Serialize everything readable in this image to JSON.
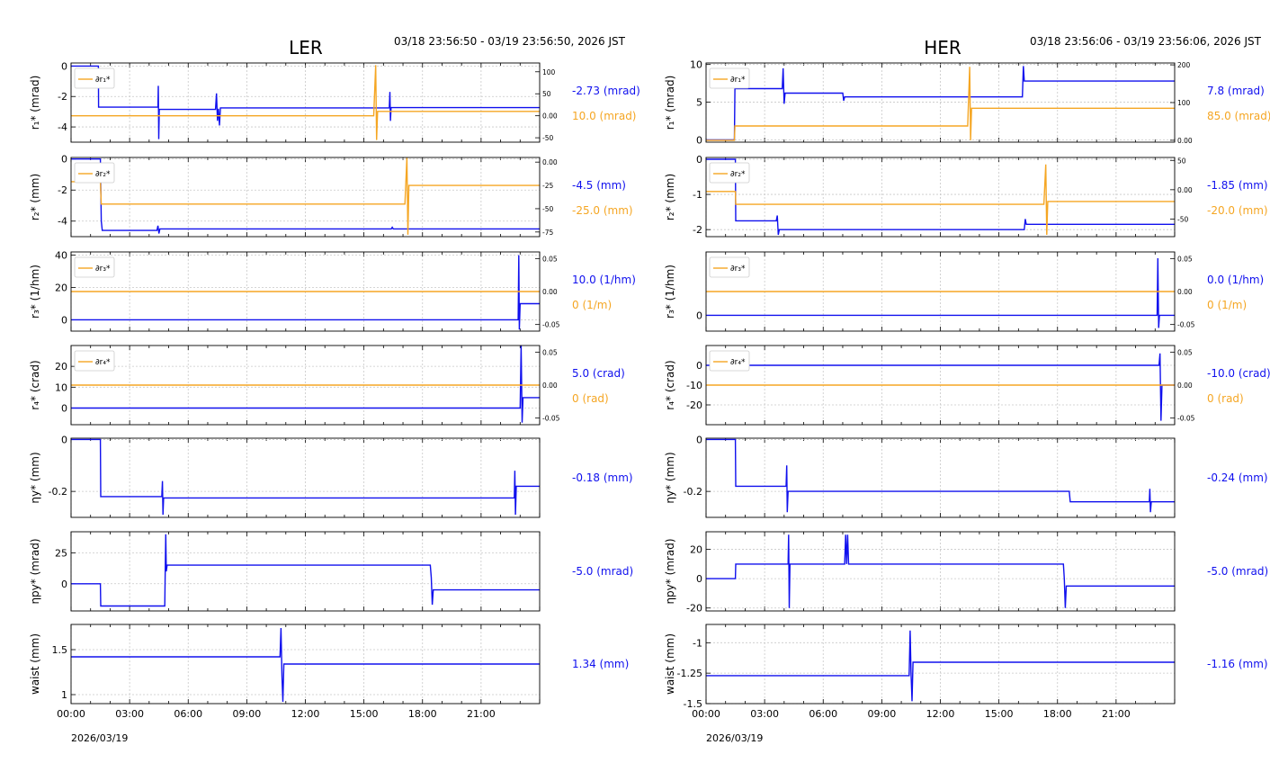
{
  "colors": {
    "blue": "#1010ee",
    "orange": "#f5a623",
    "grid": "#c8c8c8",
    "axis": "#000000"
  },
  "chart_data": [
    {
      "type": "line",
      "title": "LER",
      "time_range": "03/18 23:56:50 - 03/19 23:56:50, 2026 JST",
      "date_label": "2026/03/19",
      "x_tick_labels": [
        "00:00",
        "03:00",
        "06:00",
        "09:00",
        "12:00",
        "15:00",
        "18:00",
        "21:00"
      ],
      "xlim_hours": [
        0,
        24
      ],
      "panels": [
        {
          "ylabel": "r₁* (mrad)",
          "ylim": [
            -5,
            0.2
          ],
          "yticks": [
            0,
            -2,
            -4
          ],
          "y2lim": [
            -60,
            120
          ],
          "y2ticks": [
            100,
            50,
            0,
            -50
          ],
          "legend": "∂r₁*",
          "blue_value": "-2.73 (mrad)",
          "orange_value": "10.0 (mrad)",
          "series": [
            {
              "name": "r₁*",
              "color": "blue",
              "axis": "left",
              "x": [
                0,
                1.4,
                1.41,
                4.45,
                4.47,
                4.49,
                4.52,
                4.55,
                7.4,
                7.45,
                7.5,
                7.55,
                7.6,
                7.65,
                16.3,
                16.33,
                16.36,
                16.39,
                24
              ],
              "y": [
                0,
                0,
                -2.7,
                -2.7,
                -1.3,
                -4.8,
                -2.85,
                -2.85,
                -2.85,
                -1.8,
                -3.6,
                -2.8,
                -3.9,
                -2.75,
                -2.75,
                -1.7,
                -3.6,
                -2.73,
                -2.73
              ]
            },
            {
              "name": "∂r₁*",
              "color": "orange",
              "axis": "right",
              "x": [
                0,
                15.5,
                15.6,
                15.65,
                15.7,
                24
              ],
              "y": [
                0,
                0,
                115,
                -55,
                10,
                10
              ]
            }
          ]
        },
        {
          "ylabel": "r₂* (mm)",
          "ylim": [
            -5,
            0.1
          ],
          "yticks": [
            0,
            -2,
            -4
          ],
          "y2lim": [
            -80,
            5
          ],
          "y2ticks": [
            0,
            -25,
            -50,
            -75
          ],
          "legend": "∂r₂*",
          "blue_value": "-4.5 (mm)",
          "orange_value": "-25.0 (mm)",
          "series": [
            {
              "name": "r₂*",
              "color": "blue",
              "axis": "left",
              "x": [
                0,
                1.5,
                1.55,
                1.6,
                4.4,
                4.45,
                4.5,
                4.55,
                16.4,
                16.45,
                16.5,
                24
              ],
              "y": [
                0,
                0,
                -4.0,
                -4.6,
                -4.6,
                -4.3,
                -4.8,
                -4.5,
                -4.5,
                -4.4,
                -4.5,
                -4.5
              ]
            },
            {
              "name": "∂r₂*",
              "color": "orange",
              "axis": "right",
              "x": [
                0,
                1.5,
                1.55,
                17.1,
                17.2,
                17.25,
                17.3,
                17.4,
                24
              ],
              "y": [
                -21,
                -21,
                -45,
                -45,
                5,
                -78,
                -25,
                -25,
                -25
              ]
            }
          ]
        },
        {
          "ylabel": "r₃* (1/hm)",
          "ylim": [
            -7,
            42
          ],
          "yticks": [
            40,
            20,
            0
          ],
          "y2lim": [
            -0.06,
            0.06
          ],
          "y2ticks": [
            0.05,
            0.0,
            -0.05
          ],
          "legend": "∂r₃*",
          "blue_value": "10.0 (1/hm)",
          "orange_value": "0 (1/m)",
          "series": [
            {
              "name": "r₃*",
              "color": "blue",
              "axis": "left",
              "x": [
                0,
                22.9,
                22.93,
                22.96,
                23.0,
                24
              ],
              "y": [
                0,
                0,
                40,
                -6,
                10,
                10
              ]
            },
            {
              "name": "∂r₃*",
              "color": "orange",
              "axis": "right",
              "x": [
                0,
                24
              ],
              "y": [
                0,
                0
              ]
            }
          ]
        },
        {
          "ylabel": "r₄* (crad)",
          "ylim": [
            -8,
            30
          ],
          "yticks": [
            20,
            10,
            0
          ],
          "y2lim": [
            -0.06,
            0.06
          ],
          "y2ticks": [
            0.05,
            0.0,
            -0.05
          ],
          "legend": "∂r₄*",
          "blue_value": "5.0 (crad)",
          "orange_value": "0 (rad)",
          "series": [
            {
              "name": "r₄*",
              "color": "blue",
              "axis": "left",
              "x": [
                0,
                23.0,
                23.05,
                23.1,
                23.15,
                24
              ],
              "y": [
                0,
                0,
                30,
                -7,
                5,
                5
              ]
            },
            {
              "name": "∂r₄*",
              "color": "orange",
              "axis": "right",
              "x": [
                0,
                24
              ],
              "y": [
                0,
                0
              ]
            }
          ]
        },
        {
          "ylabel": "ηy* (mm)",
          "ylim": [
            -0.3,
            0.005
          ],
          "yticks": [
            0.0,
            -0.2
          ],
          "blue_value": "-0.18 (mm)",
          "series": [
            {
              "name": "ηy*",
              "color": "blue",
              "axis": "left",
              "x": [
                0,
                1.5,
                1.52,
                4.65,
                4.68,
                4.71,
                4.74,
                22.7,
                22.73,
                22.76,
                22.8,
                24
              ],
              "y": [
                0,
                0,
                -0.22,
                -0.22,
                -0.16,
                -0.29,
                -0.225,
                -0.225,
                -0.12,
                -0.29,
                -0.18,
                -0.18
              ]
            }
          ]
        },
        {
          "ylabel": "ηpy* (mrad)",
          "ylim": [
            -22,
            42
          ],
          "yticks": [
            25,
            0
          ],
          "blue_value": "-5.0 (mrad)",
          "series": [
            {
              "name": "ηpy*",
              "color": "blue",
              "axis": "left",
              "x": [
                0,
                1.5,
                1.52,
                4.8,
                4.82,
                4.85,
                4.88,
                4.92,
                18.4,
                18.45,
                18.5,
                18.55,
                24
              ],
              "y": [
                0,
                0,
                -18,
                -18,
                5,
                40,
                10,
                15,
                15,
                5,
                -17,
                -5,
                -5
              ]
            }
          ]
        },
        {
          "ylabel": "waist (mm)",
          "ylim": [
            0.9,
            1.78
          ],
          "yticks": [
            1.5,
            1.0
          ],
          "blue_value": "1.34 (mm)",
          "series": [
            {
              "name": "waist",
              "color": "blue",
              "axis": "left",
              "x": [
                0,
                10.7,
                10.75,
                10.8,
                10.85,
                10.9,
                24
              ],
              "y": [
                1.42,
                1.42,
                1.74,
                1.2,
                0.92,
                1.34,
                1.34
              ]
            }
          ]
        }
      ]
    },
    {
      "type": "line",
      "title": "HER",
      "time_range": "03/18 23:56:06 - 03/19 23:56:06, 2026 JST",
      "date_label": "2026/03/19",
      "x_tick_labels": [
        "00:00",
        "03:00",
        "06:00",
        "09:00",
        "12:00",
        "15:00",
        "18:00",
        "21:00"
      ],
      "xlim_hours": [
        0,
        24
      ],
      "panels": [
        {
          "ylabel": "r₁* (mrad)",
          "ylim": [
            -0.3,
            10.2
          ],
          "yticks": [
            10,
            5,
            0
          ],
          "y2lim": [
            -5,
            205
          ],
          "y2ticks": [
            200,
            100,
            0
          ],
          "legend": "∂r₁*",
          "blue_value": "7.8 (mrad)",
          "orange_value": "85.0 (mrad)",
          "series": [
            {
              "name": "r₁*",
              "color": "blue",
              "axis": "left",
              "x": [
                0,
                1.45,
                1.48,
                3.9,
                3.95,
                4.0,
                4.05,
                7.0,
                7.05,
                7.1,
                16.2,
                16.25,
                16.3,
                24
              ],
              "y": [
                0,
                0,
                6.8,
                6.8,
                9.5,
                4.8,
                6.2,
                6.2,
                5.2,
                5.7,
                5.7,
                9.8,
                7.8,
                7.8
              ]
            },
            {
              "name": "∂r₁*",
              "color": "orange",
              "axis": "right",
              "x": [
                0,
                1.45,
                1.48,
                13.4,
                13.5,
                13.55,
                13.6,
                24
              ],
              "y": [
                0,
                0,
                38,
                38,
                195,
                0,
                85,
                85
              ]
            }
          ]
        },
        {
          "ylabel": "r₂* (mm)",
          "ylim": [
            -2.2,
            0.05
          ],
          "yticks": [
            0,
            -1,
            -2
          ],
          "y2lim": [
            -80,
            55
          ],
          "y2ticks": [
            50,
            0,
            -50
          ],
          "legend": "∂r₂*",
          "blue_value": "-1.85 (mm)",
          "orange_value": "-20.0 (mm)",
          "series": [
            {
              "name": "r₂*",
              "color": "blue",
              "axis": "left",
              "x": [
                0,
                1.5,
                1.52,
                3.6,
                3.65,
                3.7,
                3.75,
                16.3,
                16.35,
                16.4,
                24
              ],
              "y": [
                0,
                0,
                -1.75,
                -1.75,
                -1.6,
                -2.15,
                -2.0,
                -2.0,
                -1.7,
                -1.85,
                -1.85
              ]
            },
            {
              "name": "∂r₂*",
              "color": "orange",
              "axis": "right",
              "x": [
                0,
                1.5,
                1.52,
                17.3,
                17.4,
                17.45,
                17.5,
                17.6,
                24
              ],
              "y": [
                -3,
                -3,
                -25,
                -25,
                43,
                -77,
                -20,
                -20,
                -20
              ]
            }
          ]
        },
        {
          "ylabel": "r₃* (1/hm)",
          "ylim": [
            -0.25,
            1.0
          ],
          "yticks": [
            0
          ],
          "y2lim": [
            -0.06,
            0.06
          ],
          "y2ticks": [
            0.05,
            0.0,
            -0.05
          ],
          "legend": "∂r₃*",
          "blue_value": "0.0 (1/hm)",
          "orange_value": "0 (1/m)",
          "series": [
            {
              "name": "r₃*",
              "color": "blue",
              "axis": "left",
              "x": [
                0,
                23.1,
                23.14,
                23.18,
                23.22,
                24
              ],
              "y": [
                0,
                0,
                0.9,
                -0.2,
                0,
                0
              ]
            },
            {
              "name": "∂r₃*",
              "color": "orange",
              "axis": "right",
              "x": [
                0,
                24
              ],
              "y": [
                0,
                0
              ]
            }
          ]
        },
        {
          "ylabel": "r₄* (crad)",
          "ylim": [
            -30,
            10
          ],
          "yticks": [
            0,
            -10,
            -20
          ],
          "y2lim": [
            -0.06,
            0.06
          ],
          "y2ticks": [
            0.05,
            0.0,
            -0.05
          ],
          "legend": "∂r₄*",
          "blue_value": "-10.0 (crad)",
          "orange_value": "0 (rad)",
          "series": [
            {
              "name": "r₄*",
              "color": "blue",
              "axis": "left",
              "x": [
                0,
                23.2,
                23.25,
                23.3,
                23.35,
                24
              ],
              "y": [
                0,
                0,
                6,
                -28,
                -10,
                -10
              ]
            },
            {
              "name": "∂r₄*",
              "color": "orange",
              "axis": "right",
              "x": [
                0,
                24
              ],
              "y": [
                0,
                0
              ]
            }
          ]
        },
        {
          "ylabel": "ηy* (mm)",
          "ylim": [
            -0.3,
            0.005
          ],
          "yticks": [
            0.0,
            -0.2
          ],
          "blue_value": "-0.24 (mm)",
          "series": [
            {
              "name": "ηy*",
              "color": "blue",
              "axis": "left",
              "x": [
                0,
                1.5,
                1.52,
                4.1,
                4.13,
                4.16,
                4.2,
                18.6,
                18.65,
                22.7,
                22.73,
                22.76,
                22.8,
                24
              ],
              "y": [
                0,
                0,
                -0.18,
                -0.18,
                -0.1,
                -0.28,
                -0.2,
                -0.2,
                -0.24,
                -0.24,
                -0.19,
                -0.28,
                -0.24,
                -0.24
              ]
            }
          ]
        },
        {
          "ylabel": "ηpy* (mrad)",
          "ylim": [
            -22,
            32
          ],
          "yticks": [
            20,
            0,
            -20
          ],
          "blue_value": "-5.0 (mrad)",
          "series": [
            {
              "name": "ηpy*",
              "color": "blue",
              "axis": "left",
              "x": [
                0,
                1.5,
                1.52,
                4.2,
                4.23,
                4.26,
                4.3,
                7.1,
                7.15,
                7.2,
                7.25,
                7.3,
                18.3,
                18.35,
                18.4,
                18.45,
                24
              ],
              "y": [
                0,
                0,
                10,
                10,
                30,
                -20,
                10,
                10,
                30,
                10,
                30,
                10,
                10,
                0,
                -20,
                -5,
                -5
              ]
            }
          ]
        },
        {
          "ylabel": "waist (mm)",
          "ylim": [
            -1.5,
            -0.85
          ],
          "yticks": [
            -1.0,
            -1.25,
            -1.5
          ],
          "blue_value": "-1.16 (mm)",
          "series": [
            {
              "name": "waist",
              "color": "blue",
              "axis": "left",
              "x": [
                0,
                10.4,
                10.45,
                10.5,
                10.55,
                10.6,
                24
              ],
              "y": [
                -1.27,
                -1.27,
                -0.9,
                -1.25,
                -1.48,
                -1.16,
                -1.16
              ]
            }
          ]
        }
      ]
    }
  ]
}
